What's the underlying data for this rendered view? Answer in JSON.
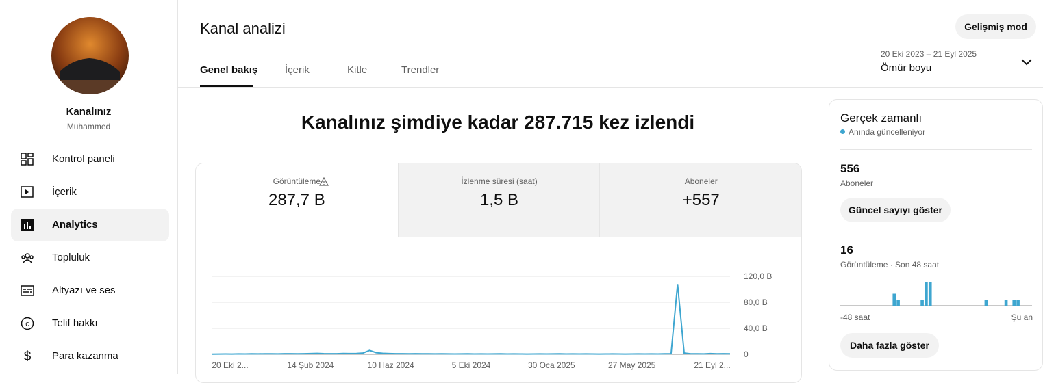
{
  "sidebar": {
    "channel_title": "Kanalınız",
    "channel_name": "Muhammed",
    "nav": [
      "Kontrol paneli",
      "İçerik",
      "Analytics",
      "Topluluk",
      "Altyazı ve ses",
      "Telif hakkı",
      "Para kazanma"
    ]
  },
  "header": {
    "title": "Kanal analizi",
    "tabs": [
      "Genel bakış",
      "İçerik",
      "Kitle",
      "Trendler"
    ],
    "advanced_button": "Gelişmiş mod",
    "date_range": "20 Eki 2023 – 21 Eyl 2025",
    "period": "Ömür boyu"
  },
  "headline": "Kanalınız şimdiye kadar 287.715 kez izlendi",
  "metrics": [
    {
      "label": "Görüntüleme",
      "value": "287,7 B"
    },
    {
      "label": "İzlenme süresi (saat)",
      "value": "1,5 B"
    },
    {
      "label": "Aboneler",
      "value": "+557"
    }
  ],
  "realtime": {
    "title": "Gerçek zamanlı",
    "status": "Anında güncelleniyor",
    "subscribers": "556",
    "subscribers_label": "Aboneler",
    "show_count_button": "Güncel sayıyı göster",
    "views": "16",
    "views_label": "Görüntüleme · Son 48 saat",
    "start_label": "-48 saat",
    "end_label": "Şu an",
    "more_button": "Daha fazla göster"
  },
  "chart_data": [
    {
      "type": "line",
      "color": "#3ea6d0",
      "x_labels": [
        "20 Eki 2...",
        "14 Şub 2024",
        "10 Haz 2024",
        "5 Eki 2024",
        "30 Oca 2025",
        "27 May 2025",
        "21 Eyl 2..."
      ],
      "values": [
        0.3,
        0.4,
        0.5,
        0.4,
        0.6,
        0.5,
        0.7,
        0.6,
        0.8,
        0.7,
        0.6,
        0.9,
        1.0,
        0.8,
        0.9,
        1.2,
        1.5,
        1.1,
        0.9,
        1.0,
        1.3,
        1.2,
        1.4,
        2.0,
        6.0,
        2.5,
        1.6,
        1.2,
        1.0,
        0.9,
        0.8,
        0.9,
        0.7,
        0.8,
        0.6,
        0.7,
        0.6,
        0.5,
        0.6,
        0.7,
        0.5,
        0.6,
        0.5,
        0.6,
        0.7,
        0.5,
        0.6,
        0.5,
        0.4,
        0.5,
        0.6,
        0.5,
        0.6,
        0.7,
        0.5,
        0.6,
        0.5,
        0.6,
        0.5,
        0.4,
        0.5,
        0.6,
        0.5,
        0.4,
        0.5,
        0.6,
        0.5,
        0.6,
        0.5,
        0.7,
        1.0,
        108,
        2.0,
        0.8,
        0.7,
        0.6,
        1.2,
        0.8,
        0.9,
        0.7
      ],
      "ylim": [
        0,
        120
      ],
      "yticks": [
        {
          "value": 0,
          "label": "0"
        },
        {
          "value": 40,
          "label": "40,0 B"
        },
        {
          "value": 80,
          "label": "80,0 B"
        },
        {
          "value": 120,
          "label": "120,0 B"
        }
      ],
      "grid": true
    },
    {
      "type": "bar",
      "color": "#3ea6d0",
      "values": [
        0,
        0,
        0,
        0,
        0,
        0,
        0,
        0,
        0,
        0,
        0,
        0,
        0,
        2,
        1,
        0,
        0,
        0,
        0,
        0,
        1,
        4,
        4,
        0,
        0,
        0,
        0,
        0,
        0,
        0,
        0,
        0,
        0,
        0,
        0,
        0,
        1,
        0,
        0,
        0,
        0,
        1,
        0,
        1,
        1,
        0,
        0,
        0
      ]
    }
  ]
}
